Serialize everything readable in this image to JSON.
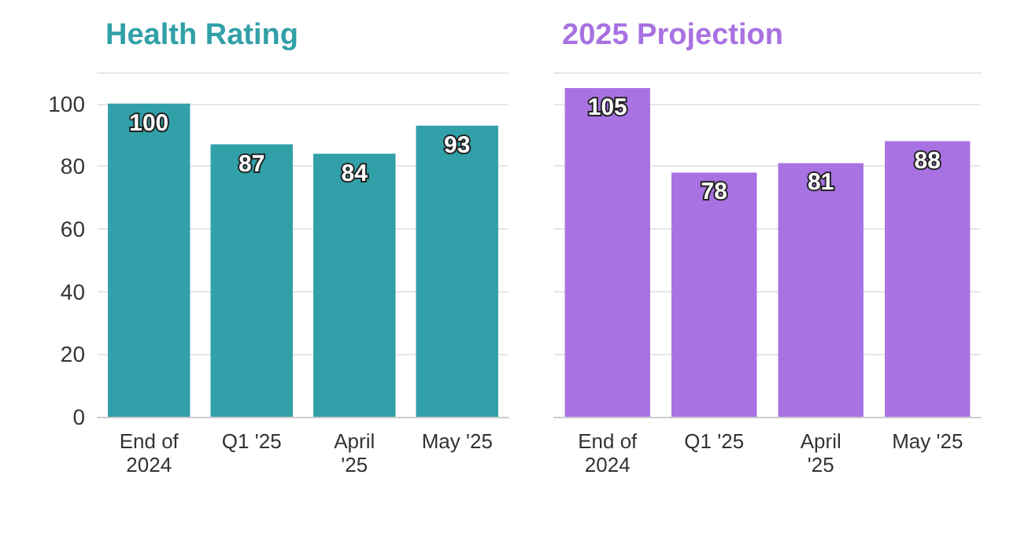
{
  "chart_data": [
    {
      "type": "bar",
      "title": "Health Rating",
      "categories": [
        "End of\n2024",
        "Q1 '25",
        "April\n'25",
        "May '25"
      ],
      "values": [
        100,
        87,
        84,
        93
      ],
      "color": "#31a0a8",
      "ylim": [
        0,
        110
      ],
      "yticks": [
        0,
        20,
        40,
        60,
        80,
        100
      ],
      "grid": "y",
      "data_labels": true
    },
    {
      "type": "bar",
      "title": "2025 Projection",
      "categories": [
        "End of\n2024",
        "Q1 '25",
        "April\n'25",
        "May '25"
      ],
      "values": [
        105,
        78,
        81,
        88
      ],
      "color": "#a872e2",
      "ylim": [
        0,
        110
      ],
      "yticks": [
        0,
        20,
        40,
        60,
        80,
        100
      ],
      "grid": "y",
      "data_labels": true,
      "tick_labels": "x"
    }
  ]
}
